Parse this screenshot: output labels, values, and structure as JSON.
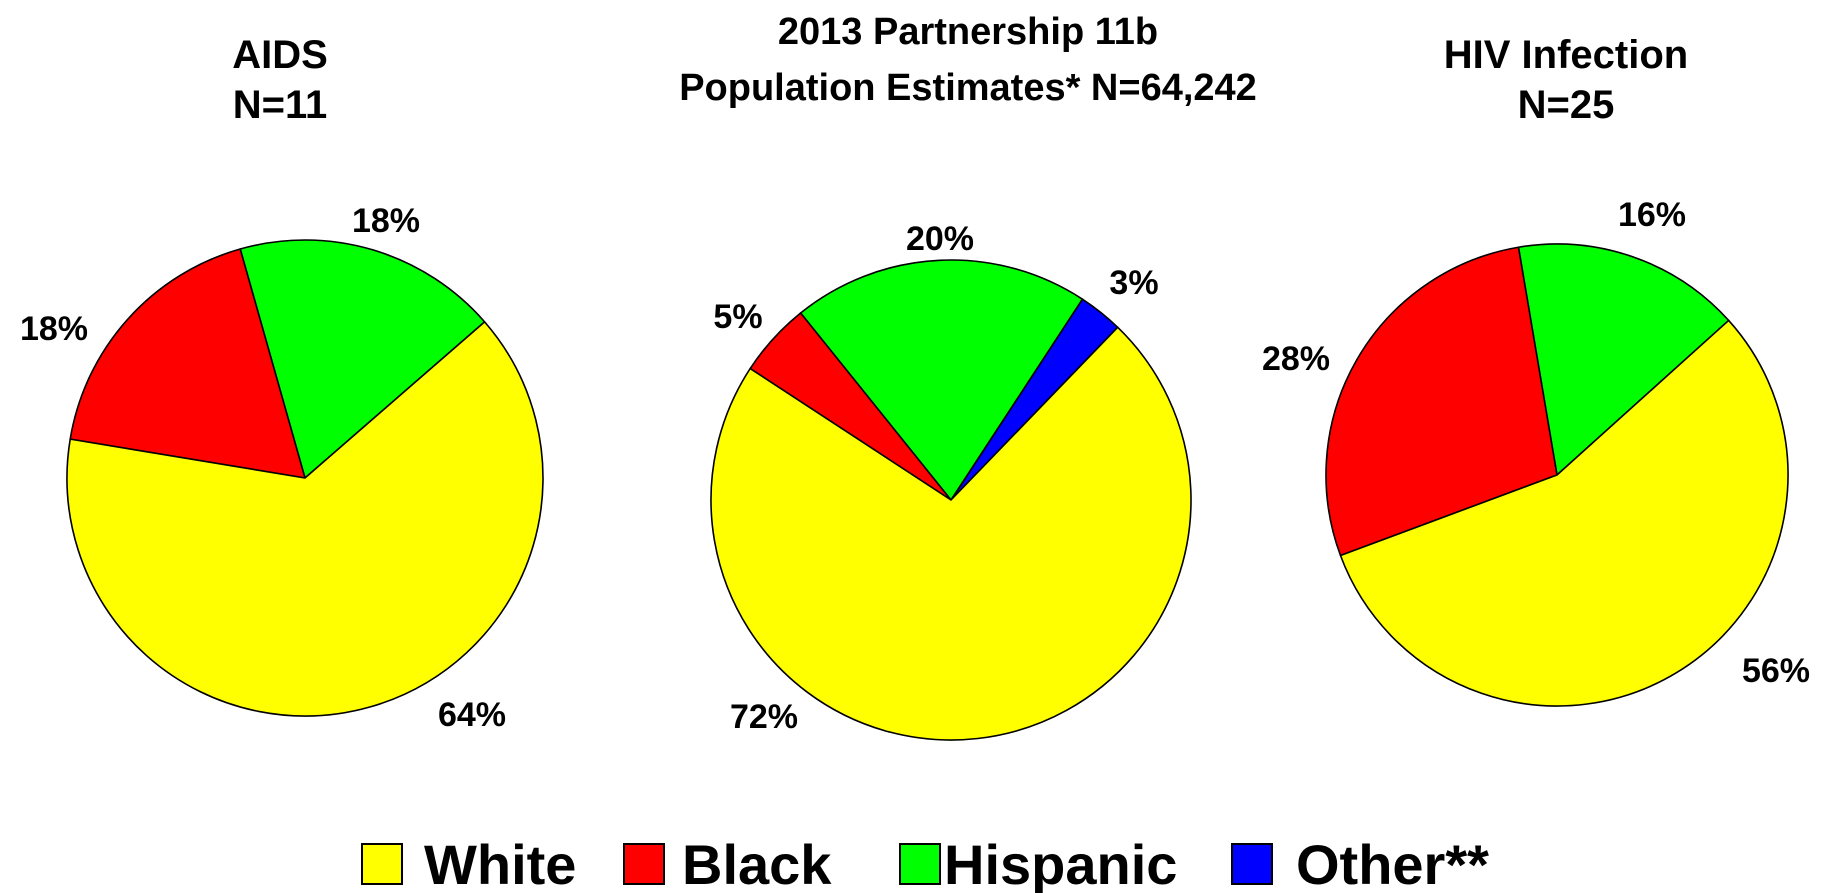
{
  "chart_data": [
    {
      "type": "pie",
      "title": [
        "AIDS",
        "N=11"
      ],
      "categories": [
        "White",
        "Black",
        "Hispanic"
      ],
      "values": [
        64,
        18,
        18
      ],
      "labels": [
        "64%",
        "18%",
        "18%"
      ],
      "start_category": "Hispanic"
    },
    {
      "type": "pie",
      "title": [
        "2013 Partnership 11b",
        "Population Estimates* N=64,242"
      ],
      "categories": [
        "White",
        "Black",
        "Hispanic",
        "Other**"
      ],
      "values": [
        72,
        5,
        20,
        3
      ],
      "labels": [
        "72%",
        "5%",
        "20%",
        "3%"
      ],
      "start_category": "Other**"
    },
    {
      "type": "pie",
      "title": [
        "HIV Infection",
        "N=25"
      ],
      "categories": [
        "White",
        "Black",
        "Hispanic"
      ],
      "values": [
        56,
        28,
        16
      ],
      "labels": [
        "56%",
        "28%",
        "16%"
      ],
      "start_category": "Hispanic"
    }
  ],
  "legend": [
    {
      "label": "White",
      "color": "#FFFF00"
    },
    {
      "label": "Black",
      "color": "#FF0000"
    },
    {
      "label": "Hispanic",
      "color": "#00FF00"
    },
    {
      "label": "Other**",
      "color": "#0000FF"
    }
  ],
  "colors": {
    "White": "#FFFF00",
    "Black": "#FF0000",
    "Hispanic": "#00FF00",
    "Other**": "#0000FF"
  }
}
